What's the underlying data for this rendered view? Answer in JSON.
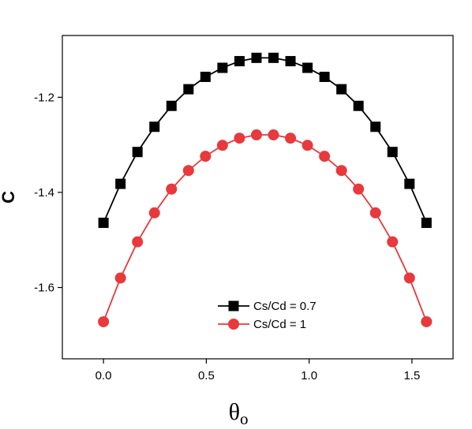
{
  "chart_data": {
    "type": "line",
    "xlabel_main": "θ",
    "xlabel_sub": "o",
    "ylabel": "C",
    "xlim": [
      -0.2,
      1.7
    ],
    "ylim": [
      -1.75,
      -1.07
    ],
    "xticks": [
      0.0,
      0.5,
      1.0,
      1.5
    ],
    "xtick_labels": [
      "0.0",
      "0.5",
      "1.0",
      "1.5"
    ],
    "yticks": [
      -1.2,
      -1.4,
      -1.6
    ],
    "ytick_labels": [
      "-1.2",
      "-1.4",
      "-1.6"
    ],
    "grid": false,
    "legend_position": "bottom-center",
    "x": [
      0.0,
      0.0827,
      0.1653,
      0.248,
      0.3307,
      0.4134,
      0.496,
      0.5787,
      0.6614,
      0.7441,
      0.8267,
      0.9094,
      0.9921,
      1.0748,
      1.1574,
      1.2401,
      1.3228,
      1.4054,
      1.4881,
      1.5708
    ],
    "series": [
      {
        "name": "Cs/Cd = 0.7",
        "color": "#000000",
        "marker": "square",
        "values": [
          -1.464,
          -1.382,
          -1.315,
          -1.262,
          -1.218,
          -1.183,
          -1.157,
          -1.138,
          -1.124,
          -1.117,
          -1.117,
          -1.124,
          -1.138,
          -1.157,
          -1.183,
          -1.218,
          -1.262,
          -1.315,
          -1.382,
          -1.464
        ]
      },
      {
        "name": "Cs/Cd = 1",
        "color": "#e8393c",
        "marker": "circle",
        "values": [
          -1.672,
          -1.58,
          -1.504,
          -1.443,
          -1.393,
          -1.354,
          -1.324,
          -1.301,
          -1.286,
          -1.279,
          -1.279,
          -1.286,
          -1.301,
          -1.324,
          -1.354,
          -1.393,
          -1.443,
          -1.504,
          -1.58,
          -1.672
        ]
      }
    ]
  }
}
